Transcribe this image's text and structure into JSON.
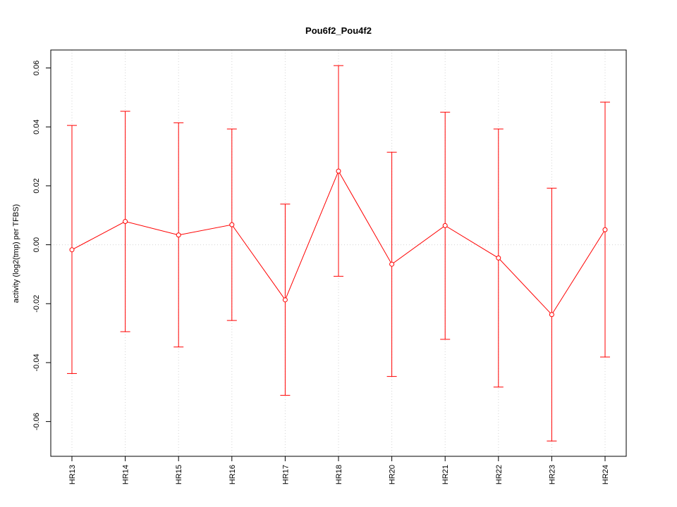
{
  "chart_data": {
    "type": "line",
    "title": "Pou6f2_Pou4f2",
    "xlabel": "",
    "ylabel": "activity (log2(tmp) per TFBS)",
    "categories": [
      "HR13",
      "HR14",
      "HR15",
      "HR16",
      "HR17",
      "HR18",
      "HR20",
      "HR21",
      "HR22",
      "HR23",
      "HR24"
    ],
    "series": [
      {
        "values": [
          -0.0017,
          0.0079,
          0.0033,
          0.0068,
          -0.0187,
          0.025,
          -0.0066,
          0.0065,
          -0.0045,
          -0.0237,
          0.0051
        ],
        "lower": [
          -0.0437,
          -0.0295,
          -0.0347,
          -0.0257,
          -0.0511,
          -0.0107,
          -0.0447,
          -0.0321,
          -0.0483,
          -0.0666,
          -0.0381
        ],
        "upper": [
          0.0405,
          0.0453,
          0.0414,
          0.0393,
          0.0138,
          0.0608,
          0.0314,
          0.045,
          0.0393,
          0.0192,
          0.0484
        ],
        "color": "#ff0000"
      }
    ],
    "yticks": [
      -0.06,
      -0.04,
      -0.02,
      0.0,
      0.02,
      0.04,
      0.06
    ],
    "ytick_labels": [
      "-0.06",
      "-0.04",
      "-0.02",
      "0.00",
      "0.02",
      "0.04",
      "0.06"
    ],
    "ylim": [
      -0.0718,
      0.0661
    ],
    "grid": true,
    "legend": "none"
  }
}
